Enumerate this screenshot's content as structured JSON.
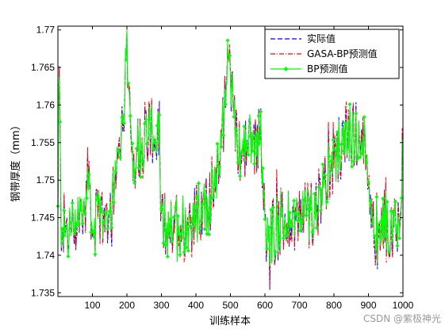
{
  "chart_data": {
    "type": "line",
    "title": "",
    "xlabel": "训练样本",
    "ylabel": "钢带厚度（mm）",
    "xlim": [
      0,
      1000
    ],
    "ylim": [
      1.7345,
      1.7705
    ],
    "xticks": [
      100,
      200,
      300,
      400,
      500,
      600,
      700,
      800,
      900,
      1000
    ],
    "yticks": [
      1.735,
      1.74,
      1.745,
      1.75,
      1.755,
      1.76,
      1.765,
      1.77
    ],
    "ytick_labels": [
      "1.735",
      "1.74",
      "1.745",
      "1.75",
      "1.755",
      "1.76",
      "1.765",
      "1.77"
    ],
    "grid": false,
    "legend_position": "top-right",
    "key_points": {
      "x": [
        0,
        3,
        10,
        30,
        60,
        80,
        88,
        100,
        130,
        150,
        170,
        190,
        200,
        215,
        240,
        260,
        290,
        300,
        310,
        330,
        360,
        390,
        420,
        440,
        460,
        480,
        495,
        520,
        560,
        590,
        600,
        612,
        630,
        660,
        700,
        740,
        780,
        800,
        810,
        830,
        850,
        880,
        900,
        915,
        930,
        960,
        990,
        1000
      ],
      "y": [
        1.744,
        1.766,
        1.744,
        1.743,
        1.745,
        1.747,
        1.751,
        1.744,
        1.745,
        1.746,
        1.751,
        1.76,
        1.766,
        1.753,
        1.755,
        1.757,
        1.756,
        1.744,
        1.744,
        1.744,
        1.744,
        1.745,
        1.746,
        1.747,
        1.751,
        1.758,
        1.766,
        1.754,
        1.755,
        1.756,
        1.743,
        1.744,
        1.743,
        1.745,
        1.745,
        1.746,
        1.75,
        1.753,
        1.754,
        1.755,
        1.756,
        1.756,
        1.751,
        1.743,
        1.744,
        1.744,
        1.745,
        1.755
      ]
    },
    "series": [
      {
        "name": "实际值",
        "color": "#0000ff",
        "style": "dashed"
      },
      {
        "name": "GASA-BP预测值",
        "color": "#ff0000",
        "style": "dash-dot"
      },
      {
        "name": "BP预测值",
        "color": "#00ff00",
        "style": "solid-diamond"
      }
    ]
  },
  "watermark": "CSDN @紫极神光"
}
